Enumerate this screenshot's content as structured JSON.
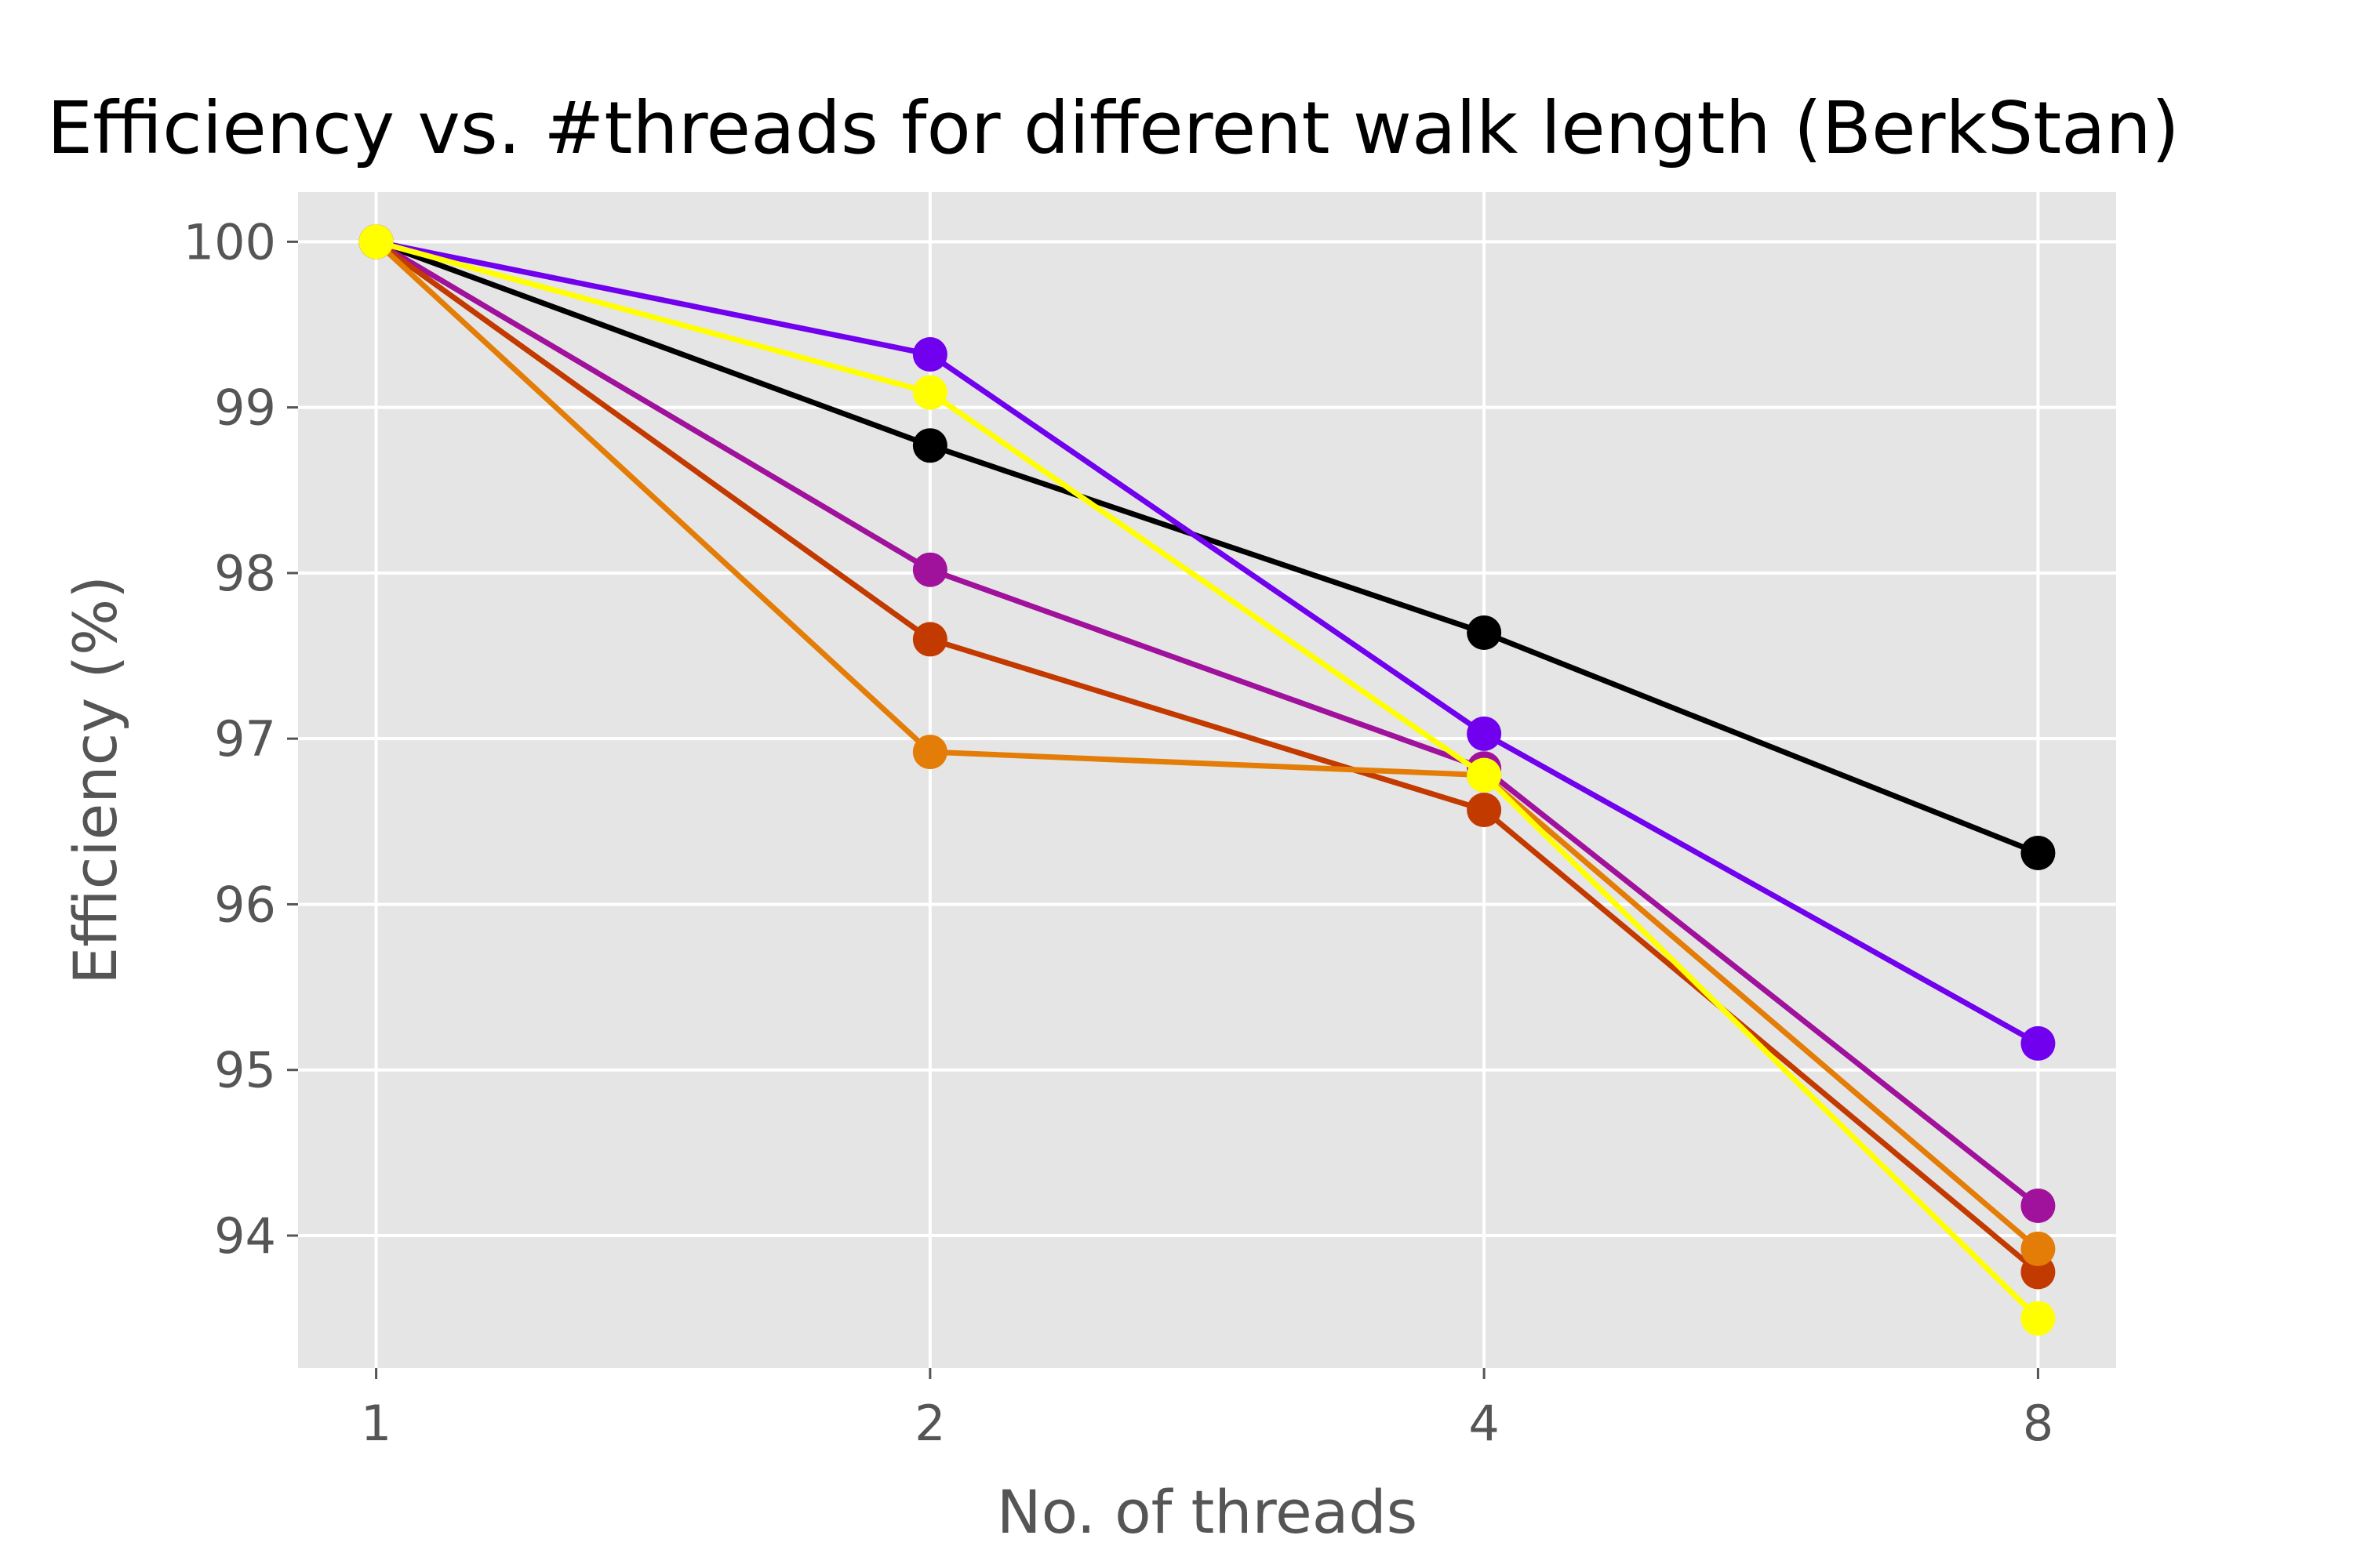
{
  "chart_data": {
    "type": "line",
    "title": "Efficiency vs. #threads for different walk length (BerkStan)",
    "xlabel": "No. of threads",
    "ylabel": "Efficiency (%)",
    "x": [
      1,
      2,
      4,
      8
    ],
    "x_scale": "log2",
    "x_tick_labels": [
      "1",
      "2",
      "4",
      "8"
    ],
    "y_ticks": [
      94,
      95,
      96,
      97,
      98,
      99,
      100
    ],
    "ylim": [
      93.2,
      100.3
    ],
    "grid": true,
    "background": "#e5e5e5",
    "series": [
      {
        "color": "#000000",
        "values": [
          100,
          98.77,
          97.64,
          96.31
        ]
      },
      {
        "color": "#7000ee",
        "values": [
          100,
          99.32,
          97.03,
          95.16
        ]
      },
      {
        "color": "#a0119c",
        "values": [
          100,
          98.02,
          96.82,
          94.18
        ]
      },
      {
        "color": "#c23a00",
        "values": [
          100,
          97.6,
          96.57,
          93.78
        ]
      },
      {
        "color": "#e37d07",
        "values": [
          100,
          96.92,
          96.78,
          93.92
        ]
      },
      {
        "color": "#ffff00",
        "values": [
          100,
          99.09,
          96.78,
          93.5
        ]
      }
    ]
  }
}
